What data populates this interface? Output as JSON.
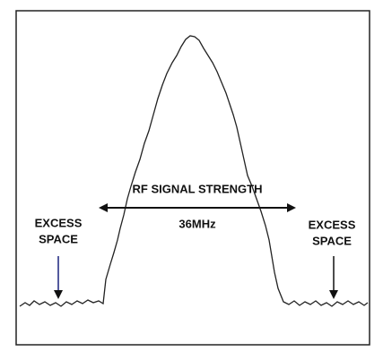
{
  "title": "RF SIGNAL STRENGTH",
  "bandwidth": "36MHz",
  "left_label": [
    "EXCESS",
    "SPACE"
  ],
  "right_label": [
    "EXCESS",
    "SPACE"
  ]
}
